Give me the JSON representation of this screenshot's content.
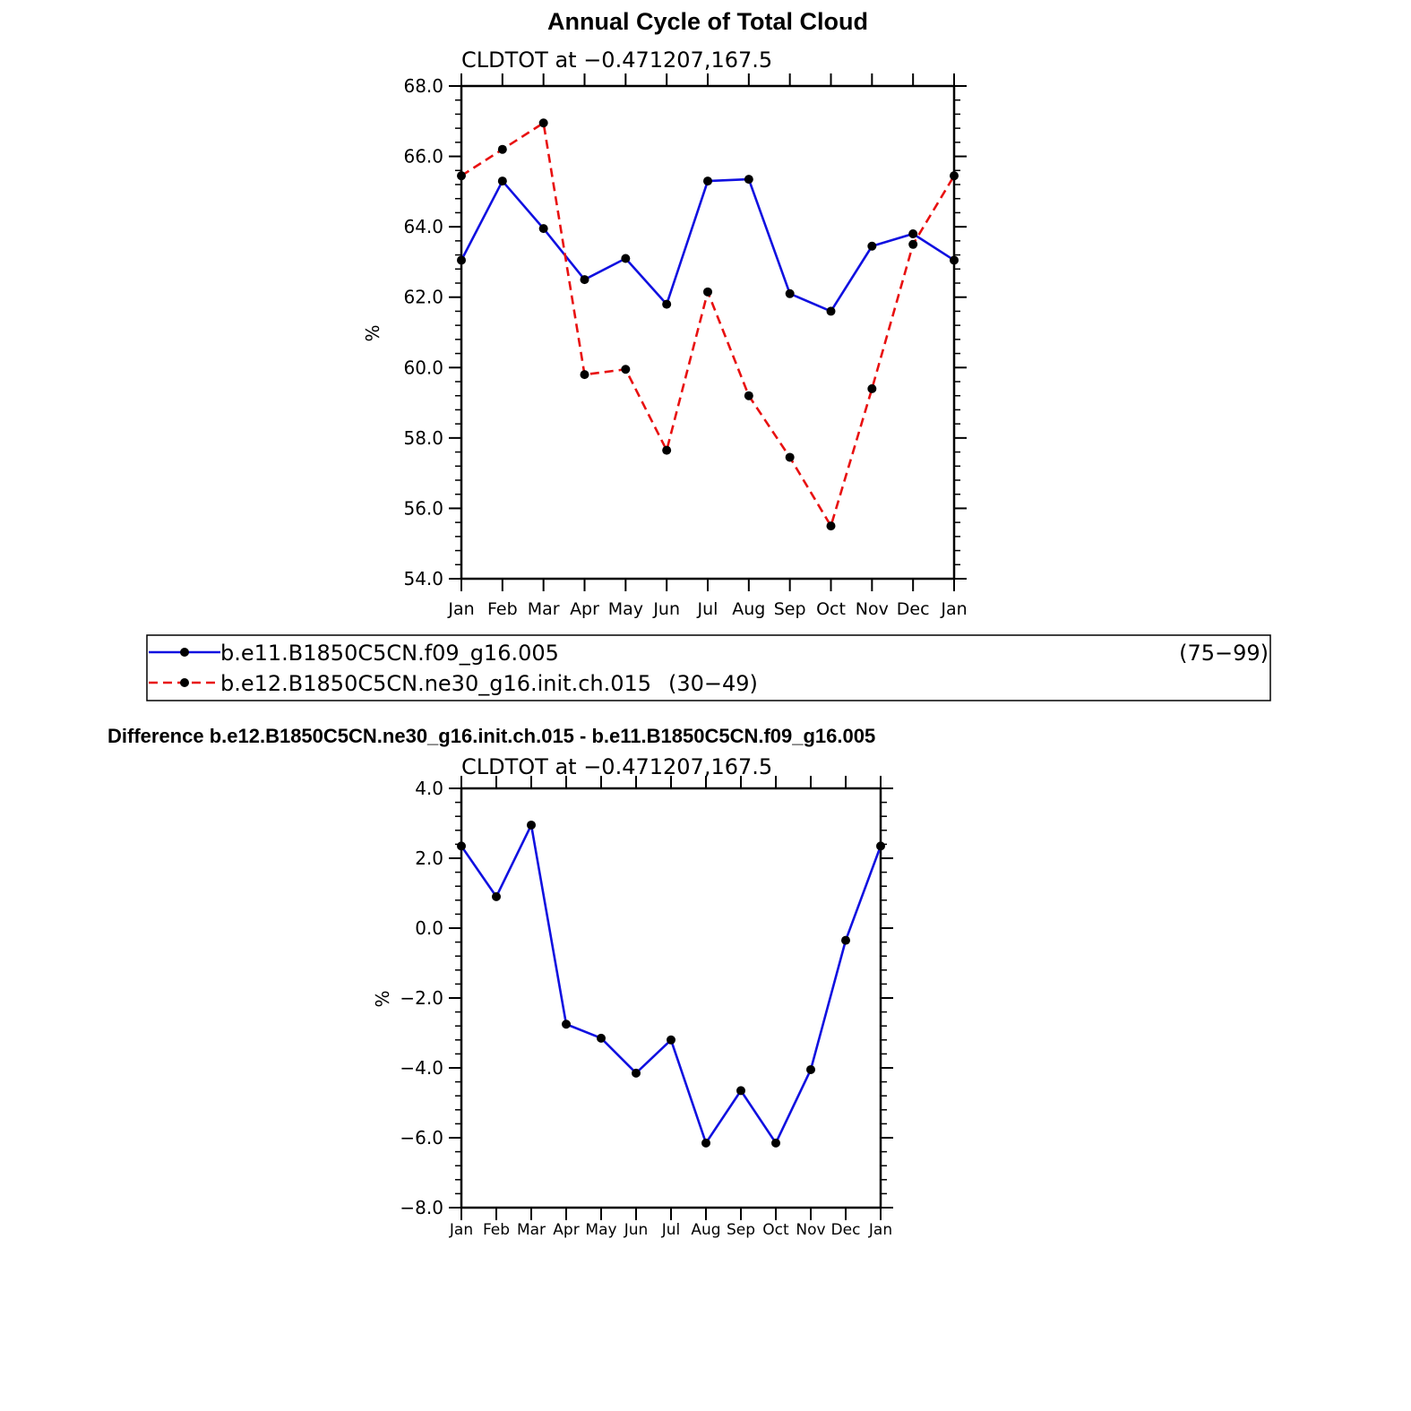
{
  "chart_data": [
    {
      "type": "line",
      "title": "Annual Cycle of Total Cloud",
      "subtitle": "CLDTOT at −0.471207,167.5",
      "xlabel": "",
      "ylabel": "%",
      "ylim": [
        54.0,
        68.0
      ],
      "yticks": [
        "54.0",
        "56.0",
        "58.0",
        "60.0",
        "62.0",
        "64.0",
        "66.0",
        "68.0"
      ],
      "categories": [
        "Jan",
        "Feb",
        "Mar",
        "Apr",
        "May",
        "Jun",
        "Jul",
        "Aug",
        "Sep",
        "Oct",
        "Nov",
        "Dec",
        "Jan"
      ],
      "series": [
        {
          "name": "b.e11.B1850C5CN.f09_g16.005",
          "years": "(75−99)",
          "color": "#1010e0",
          "dash": "solid",
          "values": [
            63.05,
            65.3,
            63.95,
            62.5,
            63.1,
            61.8,
            65.3,
            65.35,
            62.1,
            61.6,
            63.45,
            63.8,
            63.05
          ]
        },
        {
          "name": "b.e12.B1850C5CN.ne30_g16.init.ch.015",
          "years": "(30−49)",
          "color": "#e81010",
          "dash": "dashed",
          "values": [
            65.45,
            66.2,
            66.95,
            59.8,
            59.95,
            57.65,
            62.15,
            59.2,
            57.45,
            55.5,
            59.4,
            63.5,
            65.45
          ]
        }
      ]
    },
    {
      "type": "line",
      "title": "Difference b.e12.B1850C5CN.ne30_g16.init.ch.015 - b.e11.B1850C5CN.f09_g16.005",
      "subtitle": "CLDTOT at −0.471207,167.5",
      "xlabel": "",
      "ylabel": "%",
      "ylim": [
        -8.0,
        4.0
      ],
      "yticks": [
        "−8.0",
        "−6.0",
        "−4.0",
        "−2.0",
        "0.0",
        "2.0",
        "4.0"
      ],
      "categories": [
        "Jan",
        "Feb",
        "Mar",
        "Apr",
        "May",
        "Jun",
        "Jul",
        "Aug",
        "Sep",
        "Oct",
        "Nov",
        "Dec",
        "Jan"
      ],
      "series": [
        {
          "name": "difference",
          "color": "#1010e0",
          "dash": "solid",
          "values": [
            2.35,
            0.9,
            2.95,
            -2.75,
            -3.15,
            -4.15,
            -3.2,
            -6.15,
            -4.65,
            -6.15,
            -4.05,
            -0.35,
            2.35
          ]
        }
      ]
    }
  ]
}
